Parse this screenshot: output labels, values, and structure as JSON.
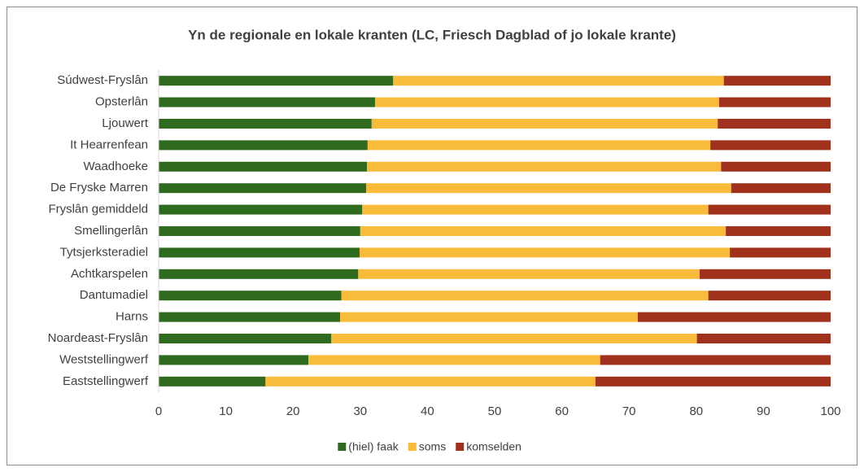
{
  "chart_data": {
    "type": "stacked_bar_horizontal",
    "title": "Yn de regionale en lokale kranten (LC, Friesch Dagblad of jo lokale krante)",
    "categories": [
      "Súdwest-Fryslân",
      "Opsterlân",
      "Ljouwert",
      "It Hearrenfean",
      "Waadhoeke",
      "De Fryske Marren",
      "Fryslân gemiddeld",
      "Smellingerlân",
      "Tytsjerksteradiel",
      "Achtkarspelen",
      "Dantumadiel",
      "Harns",
      "Noardeast-Fryslân",
      "Weststellingwerf",
      "Eaststellingwerf"
    ],
    "series": [
      {
        "name": "(hiel) faak",
        "color": "#2e6b1f",
        "values": [
          34.9,
          32.2,
          31.7,
          31.1,
          31.0,
          30.9,
          30.3,
          30.0,
          29.9,
          29.7,
          27.2,
          27.0,
          25.7,
          22.3,
          15.9
        ]
      },
      {
        "name": "soms",
        "color": "#f9bc3a",
        "values": [
          49.2,
          51.2,
          51.5,
          51.0,
          52.7,
          54.3,
          51.5,
          54.4,
          55.1,
          50.8,
          54.6,
          44.3,
          54.4,
          43.4,
          49.1
        ]
      },
      {
        "name": "komselden",
        "color": "#a1301d",
        "values": [
          15.9,
          16.6,
          16.8,
          17.9,
          16.3,
          14.8,
          18.2,
          15.6,
          15.0,
          19.5,
          18.2,
          28.7,
          19.9,
          34.3,
          35.0
        ]
      }
    ],
    "xlim": [
      0,
      100
    ],
    "xticks": [
      0,
      10,
      20,
      30,
      40,
      50,
      60,
      70,
      80,
      90,
      100
    ],
    "legend": "bottom"
  }
}
